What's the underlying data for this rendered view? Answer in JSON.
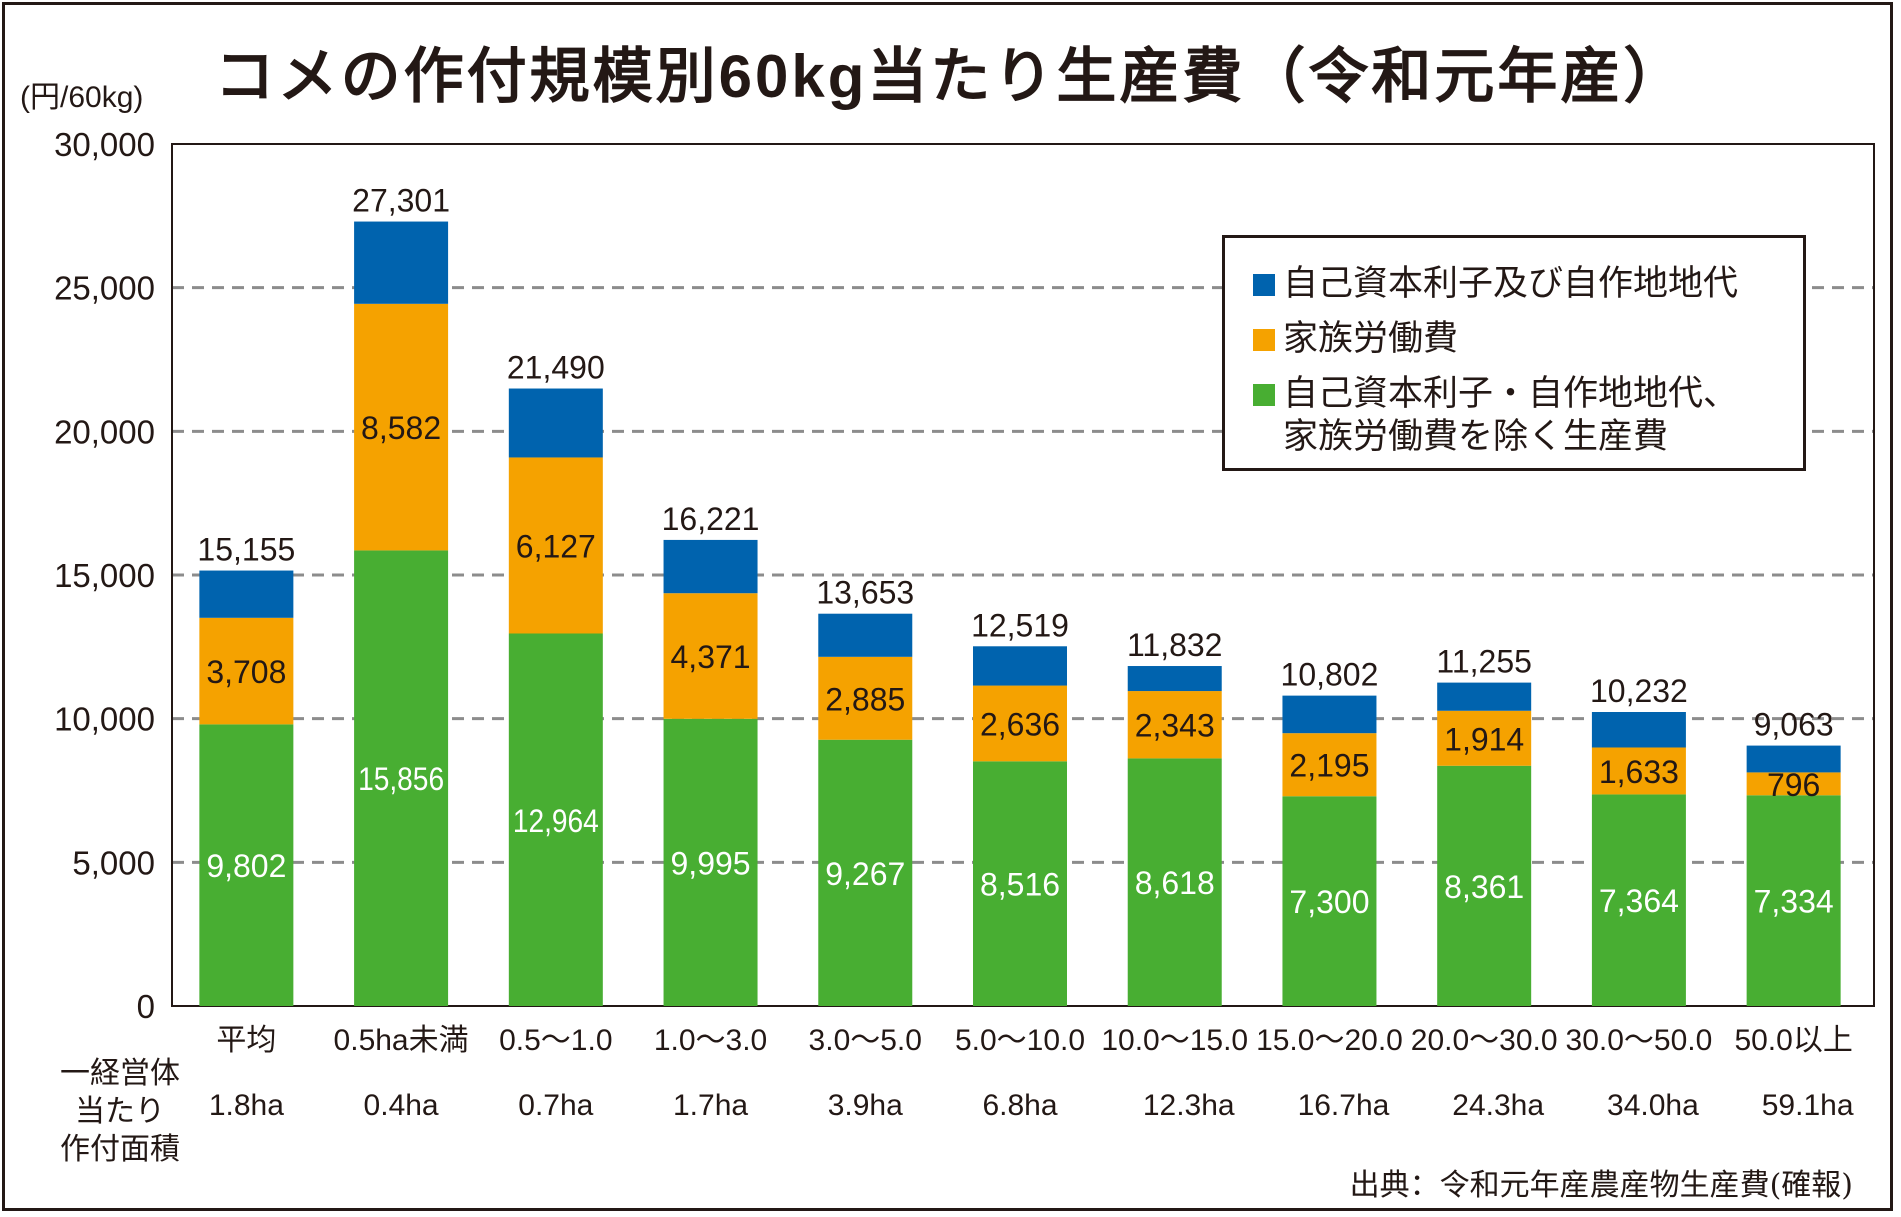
{
  "chart_data": {
    "type": "bar",
    "stacked": true,
    "title": "コメの作付規模別60kg当たり生産費（令和元年産）",
    "ylabel": "(円/60kg)",
    "xlabel": "",
    "ylim": [
      0,
      30000
    ],
    "yticks": [
      0,
      5000,
      10000,
      15000,
      20000,
      25000,
      30000
    ],
    "ytick_labels": [
      "0",
      "5,000",
      "10,000",
      "15,000",
      "20,000",
      "25,000",
      "30,000"
    ],
    "grid": true,
    "legend_position": "top-right",
    "categories": [
      "平均",
      "0.5ha未満",
      "0.5～1.0",
      "1.0～3.0",
      "3.0～5.0",
      "5.0～10.0",
      "10.0～15.0",
      "15.0～20.0",
      "20.0～30.0",
      "30.0～50.0",
      "50.0以上"
    ],
    "secondary_row_label": [
      "一経営体",
      "当たり",
      "作付面積"
    ],
    "secondary_row": [
      "1.8ha",
      "0.4ha",
      "0.7ha",
      "1.7ha",
      "3.9ha",
      "6.8ha",
      "12.3ha",
      "16.7ha",
      "24.3ha",
      "34.0ha",
      "59.1ha"
    ],
    "series": [
      {
        "name": "自己資本利子・自作地地代、家族労働費を除く生産費",
        "color": "#48AE32",
        "values": [
          9802,
          15856,
          12964,
          9995,
          9267,
          8516,
          8618,
          7300,
          8361,
          7364,
          7334
        ],
        "labels": [
          "9,802",
          "15,856",
          "12,964",
          "9,995",
          "9,267",
          "8,516",
          "8,618",
          "7,300",
          "8,361",
          "7,364",
          "7,334"
        ]
      },
      {
        "name": "家族労働費",
        "color": "#F5A200",
        "values": [
          3708,
          8582,
          6127,
          4371,
          2885,
          2636,
          2343,
          2195,
          1914,
          1633,
          796
        ],
        "labels": [
          "3,708",
          "8,582",
          "6,127",
          "4,371",
          "2,885",
          "2,636",
          "2,343",
          "2,195",
          "1,914",
          "1,633",
          "796"
        ]
      },
      {
        "name": "自己資本利子及び自作地地代",
        "color": "#0063AE",
        "values": [
          1645,
          2863,
          2399,
          1855,
          1501,
          1367,
          871,
          1307,
          980,
          1235,
          933
        ]
      }
    ],
    "totals": [
      15155,
      27301,
      21490,
      16221,
      13653,
      12519,
      11832,
      10802,
      11255,
      10232,
      9063
    ],
    "total_labels": [
      "15,155",
      "27,301",
      "21,490",
      "16,221",
      "13,653",
      "12,519",
      "11,832",
      "10,802",
      "11,255",
      "10,232",
      "9,063"
    ],
    "source": "出典：令和元年産農産物生産費(確報)"
  },
  "legend": {
    "items": [
      {
        "label": "自己資本利子及び自作地地代",
        "color": "#0063AE"
      },
      {
        "label": "家族労働費",
        "color": "#F5A200"
      },
      {
        "label_line1": "自己資本利子・自作地地代、",
        "label_line2": "家族労働費を除く生産費",
        "color": "#48AE32"
      }
    ]
  }
}
